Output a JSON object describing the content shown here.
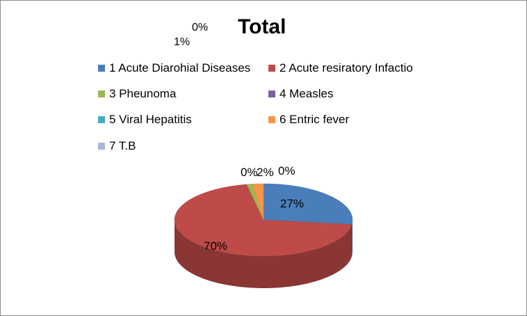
{
  "chart_data": {
    "type": "pie",
    "title": "Total",
    "three_d": true,
    "legend_position": "top",
    "categories": [
      "1 Acute Diarohial Diseases",
      "2 Acute resiratory Infactio",
      "3 Pheunoma",
      "4 Measles",
      "5 Viral Hepatitis",
      "6 Entric fever",
      "7 T.B"
    ],
    "values": [
      27,
      70,
      1,
      0,
      0,
      2,
      0
    ],
    "data_labels": [
      "27%",
      "70%",
      "1%",
      "0%",
      "0%",
      "2%",
      "0%"
    ],
    "colors": [
      "#4a7ebb",
      "#be4b48",
      "#98b954",
      "#7d60a0",
      "#46aac5",
      "#f79646",
      "#a5b9d9"
    ]
  }
}
